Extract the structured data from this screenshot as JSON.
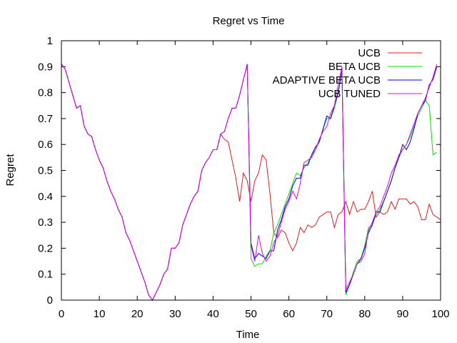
{
  "chart_data": {
    "type": "line",
    "title": "Regret vs Time",
    "xlabel": "Time",
    "ylabel": "Regret",
    "xlim": [
      0,
      100
    ],
    "ylim": [
      0,
      1
    ],
    "xticks": [
      "0",
      "10",
      "20",
      "30",
      "40",
      "50",
      "60",
      "70",
      "80",
      "90",
      "100"
    ],
    "yticks": [
      "0",
      "0.1",
      "0.2",
      "0.3",
      "0.4",
      "0.5",
      "0.6",
      "0.7",
      "0.8",
      "0.9",
      "1"
    ],
    "legend_position": "top-right",
    "grid": false,
    "shared_prefix": [
      0.91,
      0.89,
      0.84,
      0.79,
      0.74,
      0.75,
      0.67,
      0.64,
      0.63,
      0.58,
      0.54,
      0.51,
      0.46,
      0.42,
      0.39,
      0.35,
      0.32,
      0.26,
      0.23,
      0.19,
      0.15,
      0.11,
      0.07,
      0.02,
      0.0,
      0.03,
      0.06,
      0.1,
      0.12,
      0.2,
      0.2,
      0.22,
      0.29,
      0.33,
      0.37,
      0.4,
      0.42,
      0.5,
      0.53,
      0.55,
      0.58,
      0.58,
      0.64
    ],
    "series": [
      {
        "name": "UCB",
        "color": "#e41a1c",
        "tail": [
          0.62,
          0.61,
          0.54,
          0.47,
          0.38,
          0.49,
          0.46,
          0.38,
          0.46,
          0.49,
          0.56,
          0.54,
          0.41,
          0.26,
          0.24,
          0.27,
          0.26,
          0.22,
          0.19,
          0.22,
          0.28,
          0.26,
          0.29,
          0.28,
          0.29,
          0.32,
          0.33,
          0.34,
          0.34,
          0.28,
          0.33,
          0.34,
          0.38,
          0.33,
          0.38,
          0.34,
          0.35,
          0.35,
          0.38,
          0.42,
          0.32,
          0.34,
          0.33,
          0.34,
          0.38,
          0.35,
          0.39,
          0.39,
          0.39,
          0.37,
          0.38,
          0.36,
          0.31,
          0.31,
          0.37,
          0.33,
          0.32,
          0.31
        ]
      },
      {
        "name": "BETA UCB",
        "color": "#00e000",
        "tail": [
          0.65,
          0.7,
          0.74,
          0.74,
          0.79,
          0.85,
          0.91,
          0.16,
          0.13,
          0.14,
          0.14,
          0.17,
          0.19,
          0.26,
          0.29,
          0.33,
          0.37,
          0.41,
          0.45,
          0.49,
          0.48,
          0.51,
          0.53,
          0.56,
          0.58,
          0.61,
          0.66,
          0.7,
          0.7,
          0.74,
          0.8,
          0.88,
          0.02,
          0.06,
          0.11,
          0.15,
          0.16,
          0.21,
          0.28,
          0.29,
          0.33,
          0.35,
          0.38,
          0.42,
          0.46,
          0.51,
          0.55,
          0.58,
          0.6,
          0.63,
          0.67,
          0.71,
          0.74,
          0.77,
          0.75,
          0.56,
          0.57
        ]
      },
      {
        "name": "ADAPTIVE BETA UCB",
        "color": "#0000dd",
        "tail": [
          0.65,
          0.7,
          0.74,
          0.74,
          0.79,
          0.85,
          0.91,
          0.22,
          0.16,
          0.18,
          0.17,
          0.16,
          0.19,
          0.19,
          0.27,
          0.31,
          0.36,
          0.39,
          0.44,
          0.47,
          0.47,
          0.52,
          0.52,
          0.56,
          0.59,
          0.61,
          0.66,
          0.71,
          0.7,
          0.75,
          0.8,
          0.89,
          0.03,
          0.06,
          0.1,
          0.14,
          0.16,
          0.2,
          0.26,
          0.29,
          0.34,
          0.34,
          0.38,
          0.42,
          0.46,
          0.51,
          0.55,
          0.6,
          0.58,
          0.61,
          0.66,
          0.72,
          0.75,
          0.77,
          0.83,
          0.85,
          0.9
        ]
      },
      {
        "name": "UCB TUNED",
        "color": "#ee00ee",
        "tail": [
          0.65,
          0.7,
          0.74,
          0.74,
          0.79,
          0.85,
          0.91,
          0.21,
          0.15,
          0.25,
          0.18,
          0.15,
          0.17,
          0.22,
          0.25,
          0.3,
          0.35,
          0.38,
          0.42,
          0.39,
          0.45,
          0.53,
          0.54,
          0.55,
          0.58,
          0.62,
          0.65,
          0.67,
          0.72,
          0.75,
          0.83,
          0.9,
          0.04,
          0.07,
          0.1,
          0.14,
          0.15,
          0.18,
          0.27,
          0.3,
          0.34,
          0.36,
          0.4,
          0.44,
          0.49,
          0.52,
          0.56,
          0.58,
          0.6,
          0.64,
          0.68,
          0.72,
          0.75,
          0.78,
          0.82,
          0.86,
          0.91
        ]
      }
    ]
  }
}
